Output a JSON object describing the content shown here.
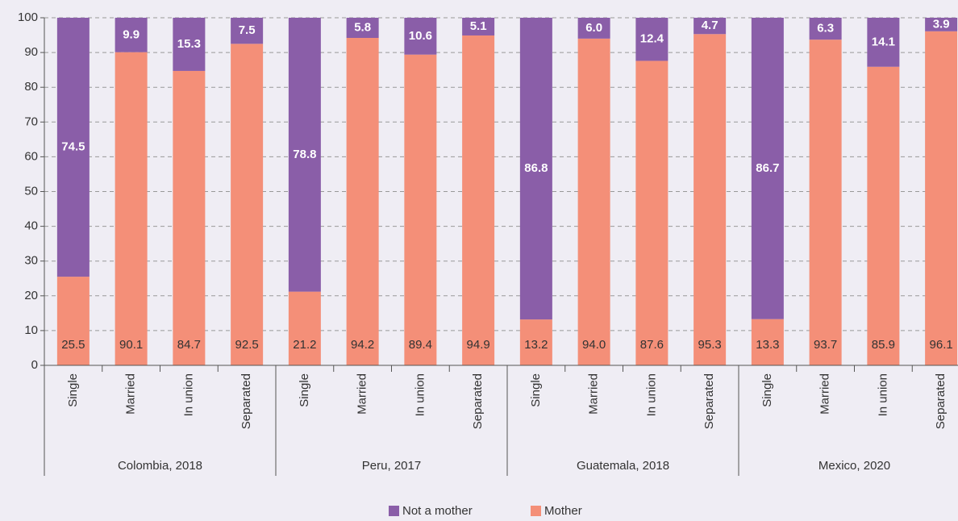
{
  "chart_data": {
    "type": "stacked-bar",
    "categories": [
      "Single",
      "Married",
      "In union",
      "Separated",
      "Single",
      "Married",
      "In union",
      "Separated",
      "Single",
      "Married",
      "In union",
      "Separated",
      "Single",
      "Married",
      "In union",
      "Separated"
    ],
    "groups": [
      "Colombia, 2018",
      "Peru, 2017",
      "Guatemala, 2018",
      "Mexico, 2020"
    ],
    "series": [
      {
        "name": "Mother",
        "color": "#f48f78",
        "values": [
          25.5,
          90.1,
          84.7,
          92.5,
          21.2,
          94.2,
          89.4,
          94.9,
          13.2,
          94.0,
          87.6,
          95.3,
          13.3,
          93.7,
          85.9,
          96.1
        ],
        "value_labels": [
          "25.5",
          "90.1",
          "84.7",
          "92.5",
          "21.2",
          "94.2",
          "89.4",
          "94.9",
          "13.2",
          "94.0",
          "87.6",
          "95.3",
          "13.3",
          "93.7",
          "85.9",
          "96.1"
        ]
      },
      {
        "name": "Not a mother",
        "color": "#8a5ea8",
        "values": [
          74.5,
          9.9,
          15.3,
          7.5,
          78.8,
          5.8,
          10.6,
          5.1,
          86.8,
          6.0,
          12.4,
          4.7,
          86.7,
          6.3,
          14.1,
          3.9
        ],
        "value_labels": [
          "74.5",
          "9.9",
          "15.3",
          "7.5",
          "78.8",
          "5.8",
          "10.6",
          "5.1",
          "86.8",
          "6.0",
          "12.4",
          "4.7",
          "86.7",
          "6.3",
          "14.1",
          "3.9"
        ]
      }
    ],
    "ylim": [
      0,
      100
    ],
    "yticks": [
      0,
      10,
      20,
      30,
      40,
      50,
      60,
      70,
      80,
      90,
      100
    ],
    "grid": true,
    "legend": "bottom"
  }
}
